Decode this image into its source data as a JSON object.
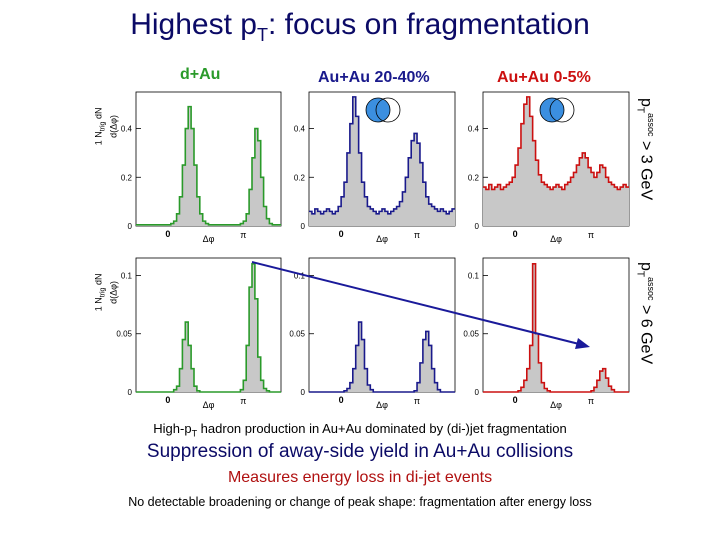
{
  "title": "Highest p",
  "title_sub": "T",
  "title_rest": ": focus on fragmentation",
  "columns": [
    {
      "label": "d+Au",
      "color": "#2a9a2a"
    },
    {
      "label": "Au+Au 20-40%",
      "color": "#1a1a8c"
    },
    {
      "label": "Au+Au 0-5%",
      "color": "#cc1010"
    }
  ],
  "row_labels": [
    {
      "main": "p",
      "sub": "T",
      "sup": "assoc",
      "rest": " > 3 GeV"
    },
    {
      "main": "p",
      "sub": "T",
      "sup": "assoc",
      "rest": " > 6 GeV"
    }
  ],
  "y_axis_label": {
    "one": "1",
    "n_trig": "N",
    "trig_sub": "trig",
    "dN": "dN",
    "dphi": "d(Δφ)"
  },
  "notes": {
    "line1_a": "High-p",
    "line1_sub": "T",
    "line1_b": " hadron production in Au+Au dominated by (di-)jet fragmentation",
    "line2": "Suppression of away-side yield in Au+Au collisions",
    "line3": "Measures energy loss in di-jet events",
    "line4": "No detectable broadening or change of peak shape: fragmentation after energy loss"
  },
  "colors": {
    "title": "#0b0a66",
    "fill": "#c8c8c8",
    "arrow": "#1a1a9a",
    "accent_red": "#b01010"
  },
  "chart_data": [
    {
      "type": "area",
      "system": "d+Au",
      "cut": "pT assoc > 3 GeV",
      "color": "#2a9a2a",
      "xlabel": "Δφ",
      "xticks": [
        "0",
        "π"
      ],
      "yticks": [
        "0.2",
        "0.4"
      ],
      "ylim": [
        0,
        0.55
      ],
      "values": [
        0.005,
        0.005,
        0.005,
        0.005,
        0.005,
        0.005,
        0.005,
        0.005,
        0.005,
        0.005,
        0.005,
        0.005,
        0.01,
        0.02,
        0.05,
        0.12,
        0.25,
        0.4,
        0.49,
        0.4,
        0.25,
        0.12,
        0.05,
        0.02,
        0.01,
        0.005,
        0.005,
        0.005,
        0.005,
        0.005,
        0.005,
        0.005,
        0.005,
        0.005,
        0.005,
        0.005,
        0.01,
        0.02,
        0.05,
        0.15,
        0.28,
        0.4,
        0.35,
        0.2,
        0.08,
        0.03,
        0.01,
        0.005,
        0.005,
        0.005
      ]
    },
    {
      "type": "area",
      "system": "Au+Au 20-40%",
      "cut": "pT assoc > 3 GeV",
      "color": "#1a1a8c",
      "xlabel": "Δφ",
      "xticks": [
        "0",
        "π"
      ],
      "yticks": [
        "0.2",
        "0.4"
      ],
      "ylim": [
        0,
        0.55
      ],
      "values": [
        0.06,
        0.05,
        0.07,
        0.06,
        0.05,
        0.06,
        0.07,
        0.06,
        0.05,
        0.06,
        0.08,
        0.12,
        0.18,
        0.3,
        0.42,
        0.53,
        0.45,
        0.3,
        0.18,
        0.12,
        0.08,
        0.07,
        0.06,
        0.05,
        0.06,
        0.07,
        0.06,
        0.05,
        0.06,
        0.07,
        0.08,
        0.1,
        0.14,
        0.2,
        0.28,
        0.35,
        0.38,
        0.34,
        0.26,
        0.18,
        0.12,
        0.09,
        0.08,
        0.07,
        0.06,
        0.07,
        0.06,
        0.05,
        0.06,
        0.07
      ]
    },
    {
      "type": "area",
      "system": "Au+Au 0-5%",
      "cut": "pT assoc > 3 GeV",
      "color": "#cc1010",
      "xlabel": "Δφ",
      "xticks": [
        "0",
        "π"
      ],
      "yticks": [
        "0.2",
        "0.4"
      ],
      "ylim": [
        0,
        0.55
      ],
      "values": [
        0.16,
        0.15,
        0.17,
        0.15,
        0.16,
        0.17,
        0.15,
        0.16,
        0.17,
        0.18,
        0.2,
        0.25,
        0.32,
        0.42,
        0.5,
        0.53,
        0.45,
        0.35,
        0.27,
        0.21,
        0.18,
        0.17,
        0.16,
        0.15,
        0.16,
        0.17,
        0.16,
        0.15,
        0.17,
        0.18,
        0.2,
        0.22,
        0.25,
        0.28,
        0.3,
        0.28,
        0.24,
        0.22,
        0.2,
        0.22,
        0.25,
        0.24,
        0.2,
        0.18,
        0.17,
        0.16,
        0.15,
        0.16,
        0.17,
        0.16
      ]
    },
    {
      "type": "area",
      "system": "d+Au",
      "cut": "pT assoc > 6 GeV",
      "color": "#2a9a2a",
      "xlabel": "Δφ",
      "xticks": [
        "0",
        "π"
      ],
      "yticks": [
        "0.05",
        "0.1"
      ],
      "ylim": [
        0,
        0.115
      ],
      "values": [
        0.0,
        0.0,
        0.0,
        0.0,
        0.0,
        0.0,
        0.0,
        0.0,
        0.0,
        0.0,
        0.0,
        0.0,
        0.0,
        0.002,
        0.005,
        0.02,
        0.045,
        0.06,
        0.04,
        0.02,
        0.005,
        0.001,
        0.0,
        0.0,
        0.0,
        0.0,
        0.0,
        0.0,
        0.0,
        0.0,
        0.0,
        0.0,
        0.0,
        0.0,
        0.0,
        0.0,
        0.002,
        0.01,
        0.04,
        0.09,
        0.11,
        0.08,
        0.03,
        0.01,
        0.003,
        0.001,
        0.0,
        0.0,
        0.0,
        0.0
      ]
    },
    {
      "type": "area",
      "system": "Au+Au 20-40%",
      "cut": "pT assoc > 6 GeV",
      "color": "#1a1a8c",
      "xlabel": "Δφ",
      "xticks": [
        "0",
        "π"
      ],
      "yticks": [
        "0.05",
        "0.1"
      ],
      "ylim": [
        0,
        0.115
      ],
      "values": [
        0.0,
        0.0,
        0.0,
        0.0,
        0.0,
        0.0,
        0.0,
        0.0,
        0.0,
        0.0,
        0.0,
        0.0,
        0.001,
        0.003,
        0.008,
        0.02,
        0.04,
        0.06,
        0.045,
        0.02,
        0.006,
        0.002,
        0.0,
        0.0,
        0.0,
        0.0,
        0.0,
        0.0,
        0.0,
        0.0,
        0.0,
        0.0,
        0.0,
        0.0,
        0.0,
        0.0,
        0.001,
        0.008,
        0.025,
        0.045,
        0.052,
        0.04,
        0.02,
        0.008,
        0.002,
        0.0,
        0.0,
        0.0,
        0.0,
        0.0
      ]
    },
    {
      "type": "area",
      "system": "Au+Au 0-5%",
      "cut": "pT assoc > 6 GeV",
      "color": "#cc1010",
      "xlabel": "Δφ",
      "xticks": [
        "0",
        "π"
      ],
      "yticks": [
        "0.05",
        "0.1"
      ],
      "ylim": [
        0,
        0.115
      ],
      "values": [
        0.0,
        0.0,
        0.0,
        0.0,
        0.0,
        0.0,
        0.0,
        0.0,
        0.0,
        0.0,
        0.0,
        0.0,
        0.001,
        0.004,
        0.01,
        0.02,
        0.04,
        0.11,
        0.05,
        0.025,
        0.008,
        0.003,
        0.001,
        0.0,
        0.0,
        0.0,
        0.0,
        0.0,
        0.0,
        0.0,
        0.0,
        0.0,
        0.0,
        0.0,
        0.0,
        0.0,
        0.0,
        0.001,
        0.004,
        0.01,
        0.018,
        0.02,
        0.012,
        0.005,
        0.002,
        0.0,
        0.0,
        0.0,
        0.0,
        0.0
      ]
    }
  ]
}
